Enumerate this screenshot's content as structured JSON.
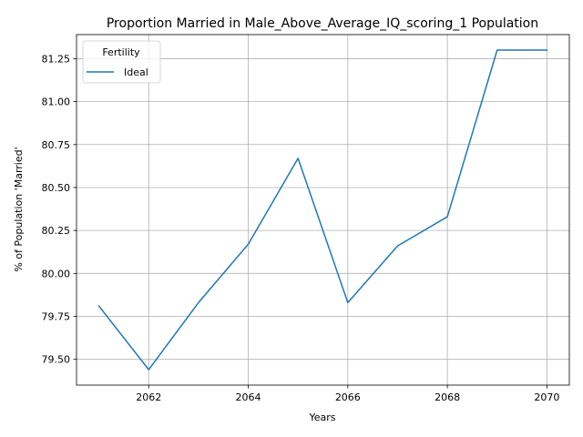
{
  "chart_data": {
    "type": "line",
    "title": "Proportion Married in Male_Above_Average_IQ_scoring_1 Population",
    "xlabel": "Years",
    "ylabel": "% of Population 'Married'",
    "xlim": [
      2060.55,
      2070.45
    ],
    "ylim": [
      79.35,
      81.39
    ],
    "xticks": [
      2062,
      2064,
      2066,
      2068,
      2070
    ],
    "yticks": [
      79.5,
      79.75,
      80.0,
      80.25,
      80.5,
      80.75,
      81.0,
      81.25
    ],
    "ytick_labels": [
      "79.50",
      "79.75",
      "80.00",
      "80.25",
      "80.50",
      "80.75",
      "81.00",
      "81.25"
    ],
    "grid": true,
    "legend": {
      "title": "Fertility",
      "placement": "upper-left"
    },
    "series": [
      {
        "name": "Ideal",
        "color": "#1f77b4",
        "x": [
          2061,
          2062,
          2063,
          2064,
          2065,
          2066,
          2067,
          2068,
          2069,
          2070
        ],
        "y": [
          79.81,
          79.44,
          79.83,
          80.17,
          80.67,
          79.83,
          80.16,
          80.33,
          81.3,
          81.3
        ]
      }
    ]
  }
}
